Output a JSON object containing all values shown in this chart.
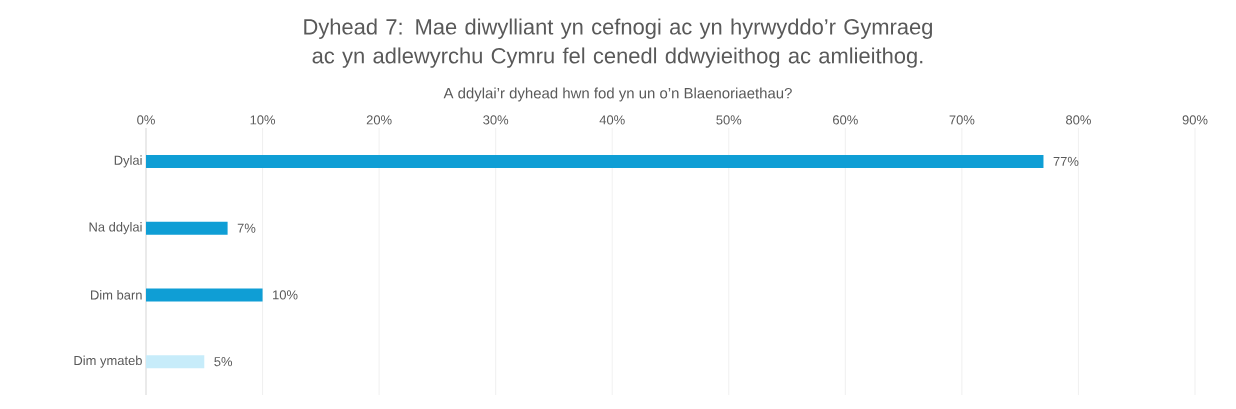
{
  "chart_data": {
    "type": "bar",
    "orientation": "horizontal",
    "title": "Dyhead 7: Mae diwylliant yn cefnogi ac yn hyrwyddo’r Gymraeg ac yn adlewyrchu Cymru fel cenedl ddwyieithog ac amlieithog.",
    "subtitle": "A ddylai’r dyhead hwn fod yn un o’n Blaenoriaethau?",
    "categories": [
      "Dylai",
      "Na ddylai",
      "Dim barn",
      "Dim ymateb"
    ],
    "values": [
      77,
      7,
      10,
      5
    ],
    "colors": [
      "#0f9ed5",
      "#0f9ed5",
      "#0f9ed5",
      "#c7ecfa"
    ],
    "value_labels": [
      "77%",
      "7%",
      "10%",
      "5%"
    ],
    "xlim": [
      0,
      90
    ],
    "xticks": [
      {
        "value": 0,
        "label": "0%"
      },
      {
        "value": 10,
        "label": "10%"
      },
      {
        "value": 20,
        "label": "20%"
      },
      {
        "value": 30,
        "label": "30%"
      },
      {
        "value": 40,
        "label": "40%"
      },
      {
        "value": 50,
        "label": "50%"
      },
      {
        "value": 60,
        "label": "60%"
      },
      {
        "value": 70,
        "label": "70%"
      },
      {
        "value": 80,
        "label": "80%"
      },
      {
        "value": 90,
        "label": "90%"
      }
    ],
    "grid": "x"
  }
}
